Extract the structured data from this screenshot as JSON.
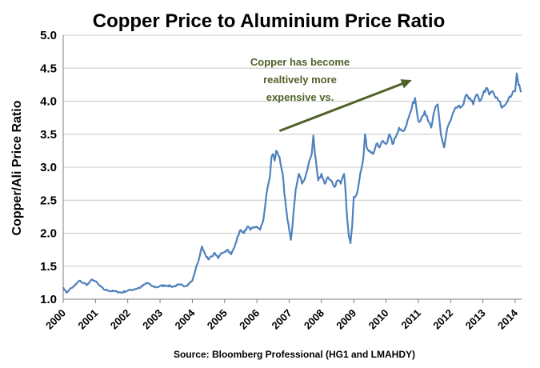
{
  "chart_data": {
    "type": "line",
    "title": "Copper Price to Aluminium Price Ratio",
    "xlabel": "",
    "ylabel": "Copper/Ali Price Ratio",
    "source": "Source:  Bloomberg Professional (HG1 and LMAHDY)",
    "ylim": [
      1.0,
      5.0
    ],
    "xlim": [
      2000,
      2014.2
    ],
    "y_ticks": [
      "1.0",
      "1.5",
      "2.0",
      "2.5",
      "3.0",
      "3.5",
      "4.0",
      "4.5",
      "5.0"
    ],
    "x_ticks": [
      "2000",
      "2001",
      "2002",
      "2003",
      "2004",
      "2005",
      "2006",
      "2007",
      "2008",
      "2009",
      "2010",
      "2011",
      "2012",
      "2013",
      "2014"
    ],
    "grid": true,
    "legend": "none",
    "annotation": {
      "lines": [
        "Copper has become",
        "realtively more",
        "expensive vs."
      ],
      "color": "#4f6228",
      "arrow_from": [
        2006.7,
        3.55
      ],
      "arrow_to": [
        2010.8,
        4.32
      ]
    },
    "series": [
      {
        "color": "#4f81bd",
        "x": [
          2000.0,
          2000.1,
          2000.2,
          2000.35,
          2000.5,
          2000.6,
          2000.75,
          2000.9,
          2001.0,
          2001.1,
          2001.25,
          2001.4,
          2001.6,
          2001.8,
          2002.0,
          2002.2,
          2002.4,
          2002.6,
          2002.75,
          2002.9,
          2003.0,
          2003.2,
          2003.4,
          2003.6,
          2003.8,
          2004.0,
          2004.1,
          2004.2,
          2004.3,
          2004.4,
          2004.5,
          2004.6,
          2004.7,
          2004.8,
          2004.9,
          2005.0,
          2005.1,
          2005.2,
          2005.3,
          2005.4,
          2005.5,
          2005.6,
          2005.7,
          2005.8,
          2005.9,
          2006.0,
          2006.1,
          2006.2,
          2006.3,
          2006.4,
          2006.45,
          2006.5,
          2006.55,
          2006.6,
          2006.7,
          2006.8,
          2006.85,
          2006.9,
          2006.95,
          2007.0,
          2007.05,
          2007.1,
          2007.15,
          2007.2,
          2007.3,
          2007.4,
          2007.5,
          2007.6,
          2007.7,
          2007.75,
          2007.8,
          2007.85,
          2007.9,
          2008.0,
          2008.1,
          2008.2,
          2008.3,
          2008.4,
          2008.5,
          2008.6,
          2008.7,
          2008.75,
          2008.8,
          2008.85,
          2008.9,
          2008.95,
          2009.0,
          2009.1,
          2009.2,
          2009.3,
          2009.35,
          2009.4,
          2009.5,
          2009.6,
          2009.7,
          2009.8,
          2009.9,
          2010.0,
          2010.1,
          2010.2,
          2010.3,
          2010.4,
          2010.5,
          2010.6,
          2010.7,
          2010.8,
          2010.9,
          2011.0,
          2011.1,
          2011.2,
          2011.3,
          2011.4,
          2011.5,
          2011.6,
          2011.7,
          2011.8,
          2011.9,
          2012.0,
          2012.1,
          2012.2,
          2012.3,
          2012.4,
          2012.5,
          2012.6,
          2012.7,
          2012.8,
          2012.9,
          2013.0,
          2013.1,
          2013.2,
          2013.3,
          2013.4,
          2013.5,
          2013.6,
          2013.7,
          2013.8,
          2013.9,
          2014.0,
          2014.05,
          2014.1,
          2014.15,
          2014.2
        ],
        "values": [
          1.18,
          1.1,
          1.15,
          1.2,
          1.28,
          1.25,
          1.22,
          1.3,
          1.27,
          1.22,
          1.15,
          1.13,
          1.12,
          1.1,
          1.13,
          1.15,
          1.18,
          1.25,
          1.2,
          1.18,
          1.2,
          1.21,
          1.19,
          1.22,
          1.2,
          1.28,
          1.45,
          1.6,
          1.8,
          1.68,
          1.6,
          1.65,
          1.7,
          1.62,
          1.7,
          1.72,
          1.75,
          1.68,
          1.78,
          1.95,
          2.05,
          2.0,
          2.1,
          2.05,
          2.08,
          2.1,
          2.05,
          2.2,
          2.6,
          2.85,
          3.15,
          3.2,
          3.1,
          3.25,
          3.15,
          2.9,
          2.6,
          2.4,
          2.2,
          2.05,
          1.9,
          2.1,
          2.4,
          2.65,
          2.9,
          2.75,
          2.85,
          3.05,
          3.2,
          3.48,
          3.2,
          3.0,
          2.8,
          2.9,
          2.75,
          2.85,
          2.8,
          2.7,
          2.8,
          2.75,
          2.9,
          2.6,
          2.2,
          1.95,
          1.85,
          2.1,
          2.55,
          2.6,
          2.9,
          3.15,
          3.5,
          3.3,
          3.25,
          3.2,
          3.35,
          3.3,
          3.4,
          3.35,
          3.5,
          3.35,
          3.45,
          3.6,
          3.55,
          3.6,
          3.75,
          3.9,
          4.05,
          3.7,
          3.75,
          3.85,
          3.7,
          3.6,
          3.85,
          3.95,
          3.5,
          3.3,
          3.6,
          3.7,
          3.85,
          3.9,
          3.9,
          3.95,
          4.1,
          4.05,
          3.95,
          4.1,
          4.0,
          4.1,
          4.2,
          4.1,
          4.15,
          4.05,
          4.0,
          3.9,
          3.95,
          4.05,
          4.1,
          4.15,
          4.42,
          4.25,
          4.2,
          4.15
        ]
      }
    ]
  }
}
